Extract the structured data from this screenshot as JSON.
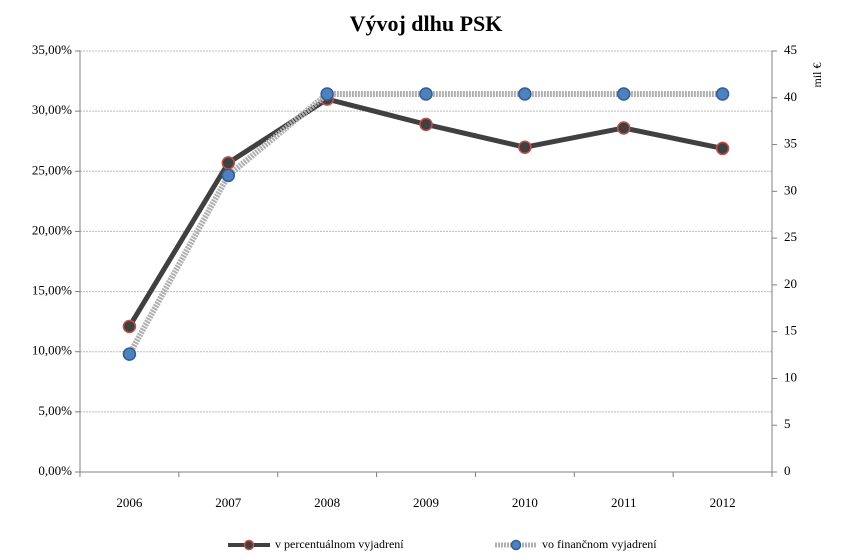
{
  "chart_data": {
    "type": "line",
    "title": "Vývoj dlhu PSK",
    "categories": [
      "2006",
      "2007",
      "2008",
      "2009",
      "2010",
      "2011",
      "2012"
    ],
    "series": [
      {
        "name": "v percentuálnom vyjadrení",
        "color": "#404040",
        "marker_edge": "#c0504d",
        "values": [
          12.1,
          25.7,
          31.0,
          28.9,
          27.0,
          28.6,
          26.9
        ]
      },
      {
        "name": "vo finančnom vyjadrení",
        "color": "#b0b0b0",
        "marker": "#4f81bd",
        "marker_edge": "#2f5f9a",
        "axis": "y2",
        "values": [
          12.6,
          31.7,
          40.4,
          40.4,
          40.4,
          40.4,
          40.4
        ]
      }
    ],
    "ylim": [
      0,
      35
    ],
    "yticks": [
      {
        "value": 0,
        "label": "0,00%"
      },
      {
        "value": 5,
        "label": "5,00%"
      },
      {
        "value": 10,
        "label": "10,00%"
      },
      {
        "value": 15,
        "label": "15,00%"
      },
      {
        "value": 20,
        "label": "20,00%"
      },
      {
        "value": 25,
        "label": "25,00%"
      },
      {
        "value": 30,
        "label": "30,00%"
      },
      {
        "value": 35,
        "label": "35,00%"
      }
    ],
    "y2lim": [
      0,
      45
    ],
    "y2ticks": [
      0,
      5,
      10,
      15,
      20,
      25,
      30,
      35,
      40,
      45
    ],
    "y2label": "mil €",
    "grid": true,
    "legend": "bottom"
  }
}
